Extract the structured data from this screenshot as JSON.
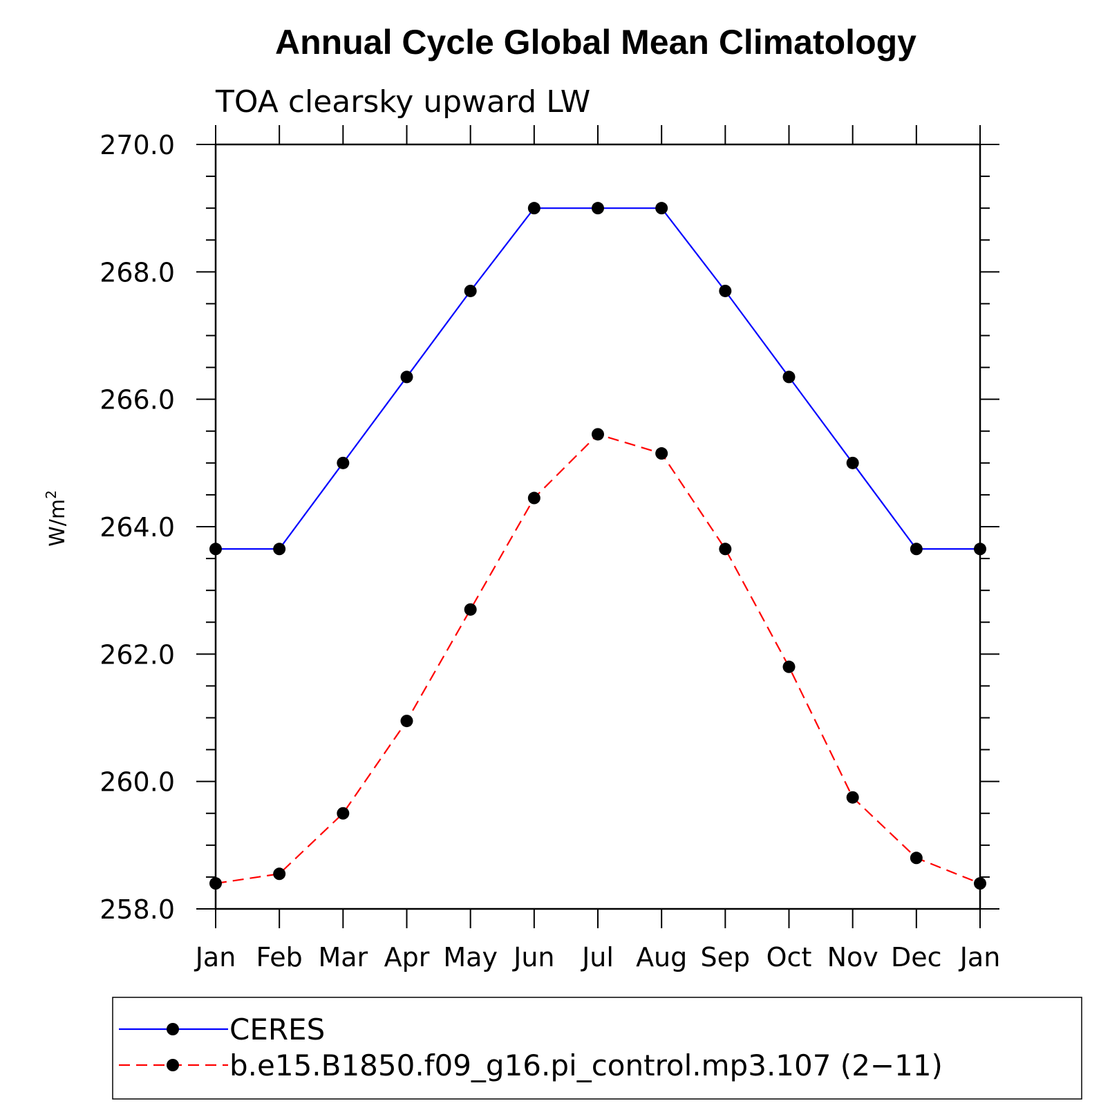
{
  "chart_data": {
    "type": "line",
    "title": "Annual Cycle Global Mean Climatology",
    "subtitle": "TOA clearsky upward LW",
    "ylabel": "W/m",
    "ylabel_sup": "2",
    "categories": [
      "Jan",
      "Feb",
      "Mar",
      "Apr",
      "May",
      "Jun",
      "Jul",
      "Aug",
      "Sep",
      "Oct",
      "Nov",
      "Dec",
      "Jan"
    ],
    "ylim": [
      258.0,
      270.0
    ],
    "yticks": [
      "258.0",
      "260.0",
      "262.0",
      "264.0",
      "266.0",
      "268.0",
      "270.0"
    ],
    "series": [
      {
        "name": "CERES",
        "color": "#0000ff",
        "dash": "solid",
        "values": [
          263.65,
          263.65,
          265.0,
          266.35,
          267.7,
          269.0,
          269.0,
          269.0,
          267.7,
          266.35,
          265.0,
          263.65,
          263.65
        ]
      },
      {
        "name": "b.e15.B1850.f09_g16.pi_control.mp3.107 (2−11)",
        "color": "#ff0000",
        "dash": "dashed",
        "values": [
          258.4,
          258.55,
          259.5,
          260.95,
          262.7,
          264.45,
          265.45,
          265.15,
          263.65,
          261.8,
          259.75,
          258.8,
          258.4
        ]
      }
    ],
    "marker_color": "#000000",
    "legend": "bottom"
  }
}
